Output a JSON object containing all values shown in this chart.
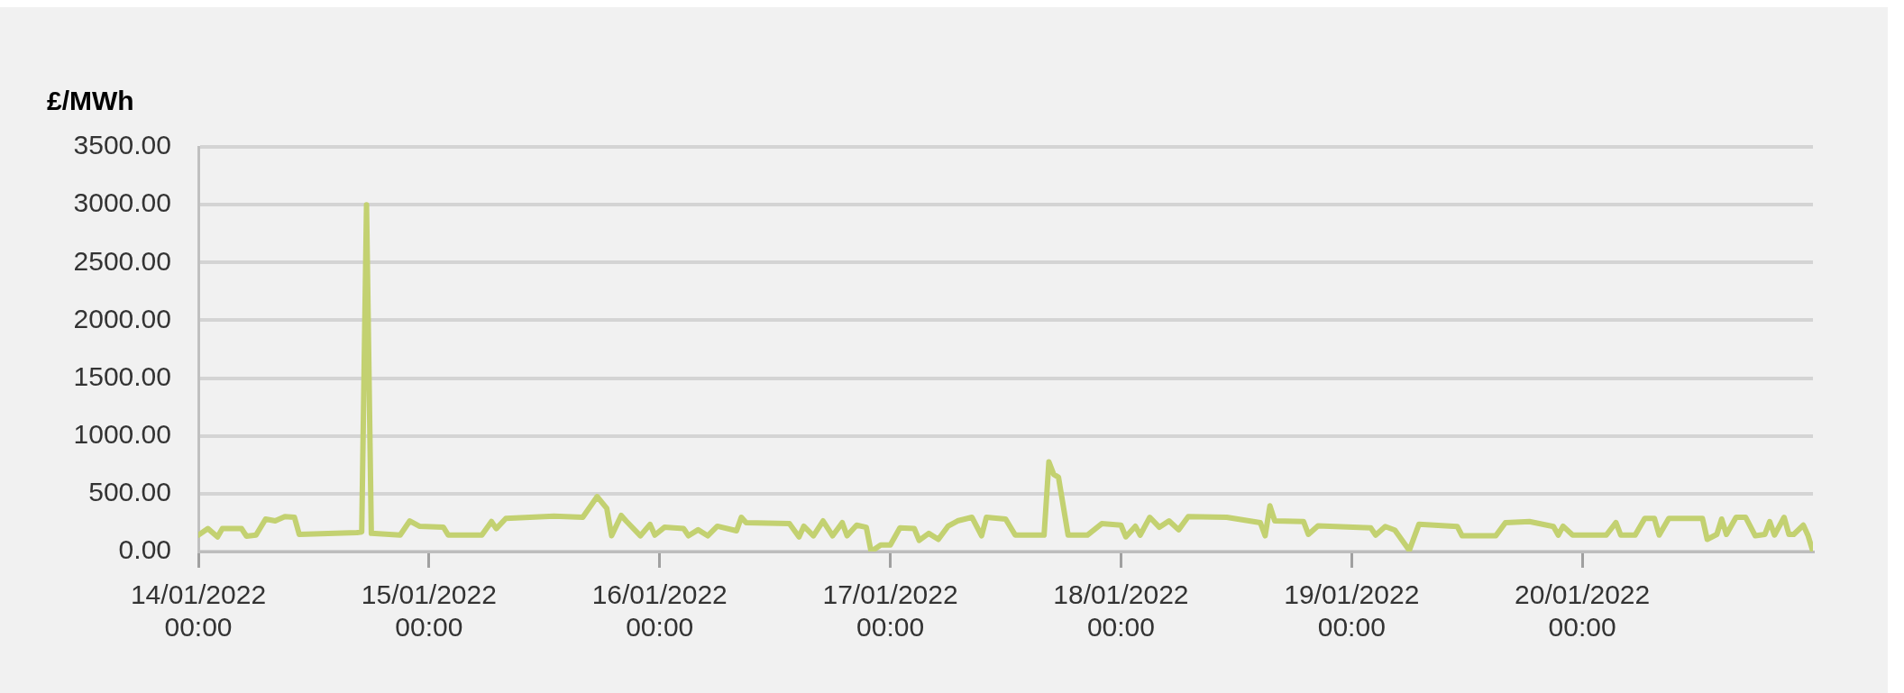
{
  "chart_data": {
    "type": "line",
    "ylabel": "£/MWh",
    "x": [
      "2022-01-14T00:00",
      "2022-01-14T01:00",
      "2022-01-14T02:00",
      "2022-01-14T02:30",
      "2022-01-14T04:30",
      "2022-01-14T05:00",
      "2022-01-14T06:00",
      "2022-01-14T07:00",
      "2022-01-14T08:00",
      "2022-01-14T09:00",
      "2022-01-14T10:00",
      "2022-01-14T10:30",
      "2022-01-14T16:30",
      "2022-01-14T17:00",
      "2022-01-14T17:30",
      "2022-01-14T18:00",
      "2022-01-14T21:00",
      "2022-01-14T22:00",
      "2022-01-14T23:00",
      "2022-01-15T01:30",
      "2022-01-15T02:00",
      "2022-01-15T05:30",
      "2022-01-15T06:30",
      "2022-01-15T07:00",
      "2022-01-15T08:00",
      "2022-01-15T13:00",
      "2022-01-15T16:00",
      "2022-01-15T17:30",
      "2022-01-15T18:30",
      "2022-01-15T19:00",
      "2022-01-15T20:00",
      "2022-01-15T20:30",
      "2022-01-15T22:00",
      "2022-01-15T23:00",
      "2022-01-15T23:30",
      "2022-01-16T00:30",
      "2022-01-16T02:30",
      "2022-01-16T03:00",
      "2022-01-16T04:00",
      "2022-01-16T05:00",
      "2022-01-16T06:00",
      "2022-01-16T08:00",
      "2022-01-16T08:30",
      "2022-01-16T09:00",
      "2022-01-16T13:30",
      "2022-01-16T14:30",
      "2022-01-16T15:00",
      "2022-01-16T16:00",
      "2022-01-16T17:00",
      "2022-01-16T18:00",
      "2022-01-16T19:00",
      "2022-01-16T19:30",
      "2022-01-16T20:30",
      "2022-01-16T21:30",
      "2022-01-16T22:00",
      "2022-01-16T23:00",
      "2022-01-17T00:00",
      "2022-01-17T01:00",
      "2022-01-17T02:30",
      "2022-01-17T03:00",
      "2022-01-17T04:00",
      "2022-01-17T05:00",
      "2022-01-17T06:00",
      "2022-01-17T07:00",
      "2022-01-17T08:30",
      "2022-01-17T09:30",
      "2022-01-17T10:00",
      "2022-01-17T12:00",
      "2022-01-17T13:00",
      "2022-01-17T16:00",
      "2022-01-17T16:30",
      "2022-01-17T17:00",
      "2022-01-17T17:30",
      "2022-01-17T18:30",
      "2022-01-17T20:30",
      "2022-01-17T22:00",
      "2022-01-18T00:00",
      "2022-01-18T00:30",
      "2022-01-18T01:30",
      "2022-01-18T02:00",
      "2022-01-18T03:00",
      "2022-01-18T04:00",
      "2022-01-18T05:00",
      "2022-01-18T06:00",
      "2022-01-18T07:00",
      "2022-01-18T11:00",
      "2022-01-18T14:30",
      "2022-01-18T15:00",
      "2022-01-18T15:30",
      "2022-01-18T16:00",
      "2022-01-18T19:00",
      "2022-01-18T19:30",
      "2022-01-18T20:30",
      "2022-01-19T02:00",
      "2022-01-19T02:30",
      "2022-01-19T03:30",
      "2022-01-19T04:30",
      "2022-01-19T06:00",
      "2022-01-19T07:00",
      "2022-01-19T11:00",
      "2022-01-19T11:30",
      "2022-01-19T15:00",
      "2022-01-19T16:00",
      "2022-01-19T18:30",
      "2022-01-19T21:00",
      "2022-01-19T21:30",
      "2022-01-19T22:00",
      "2022-01-19T23:00",
      "2022-01-20T02:30",
      "2022-01-20T03:30",
      "2022-01-20T04:00",
      "2022-01-20T05:30",
      "2022-01-20T06:30",
      "2022-01-20T07:30",
      "2022-01-20T08:00",
      "2022-01-20T09:00",
      "2022-01-20T12:30",
      "2022-01-20T13:00",
      "2022-01-20T14:00",
      "2022-01-20T14:30",
      "2022-01-20T15:00",
      "2022-01-20T16:00",
      "2022-01-20T17:00",
      "2022-01-20T18:00",
      "2022-01-20T19:00",
      "2022-01-20T19:30",
      "2022-01-20T20:00",
      "2022-01-20T21:00",
      "2022-01-20T21:30",
      "2022-01-20T22:00",
      "2022-01-20T23:00",
      "2022-01-20T23:30",
      "2022-01-21T00:00"
    ],
    "series": [
      {
        "color": "#c3d171",
        "values": [
          142,
          198,
          127,
          198,
          198,
          133,
          142,
          281,
          265,
          302,
          296,
          148,
          164,
          170,
          3000,
          157,
          142,
          265,
          219,
          210,
          142,
          142,
          259,
          198,
          287,
          306,
          296,
          475,
          373,
          136,
          312,
          265,
          136,
          235,
          142,
          210,
          198,
          136,
          188,
          136,
          219,
          179,
          296,
          250,
          241,
          127,
          219,
          136,
          265,
          136,
          250,
          136,
          228,
          210,
          0,
          56,
          56,
          204,
          198,
          96,
          157,
          105,
          219,
          265,
          296,
          136,
          296,
          281,
          142,
          142,
          775,
          667,
          642,
          142,
          142,
          241,
          228,
          127,
          219,
          142,
          296,
          210,
          265,
          188,
          302,
          296,
          250,
          136,
          395,
          265,
          259,
          148,
          222,
          204,
          142,
          216,
          185,
          10,
          235,
          216,
          136,
          136,
          250,
          259,
          216,
          142,
          219,
          142,
          142,
          250,
          142,
          142,
          287,
          287,
          142,
          287,
          287,
          105,
          148,
          281,
          148,
          296,
          296,
          136,
          148,
          259,
          142,
          296,
          148,
          148,
          228,
          136,
          0
        ]
      }
    ],
    "xlim": [
      "2022-01-14T00:00",
      "2022-01-21T00:00"
    ],
    "xticks": [
      {
        "value": "2022-01-14T00:00",
        "label": "14/01/2022 00:00"
      },
      {
        "value": "2022-01-15T00:00",
        "label": "15/01/2022 00:00"
      },
      {
        "value": "2022-01-16T00:00",
        "label": "16/01/2022 00:00"
      },
      {
        "value": "2022-01-17T00:00",
        "label": "17/01/2022 00:00"
      },
      {
        "value": "2022-01-18T00:00",
        "label": "18/01/2022 00:00"
      },
      {
        "value": "2022-01-19T00:00",
        "label": "19/01/2022 00:00"
      },
      {
        "value": "2022-01-20T00:00",
        "label": "20/01/2022 00:00"
      }
    ],
    "ylim": [
      0,
      3500
    ],
    "yticks": [
      {
        "value": 0,
        "label": "0.00"
      },
      {
        "value": 500,
        "label": "500.00"
      },
      {
        "value": 1000,
        "label": "1000.00"
      },
      {
        "value": 1500,
        "label": "1500.00"
      },
      {
        "value": 2000,
        "label": "2000.00"
      },
      {
        "value": 2500,
        "label": "2500.00"
      },
      {
        "value": 3000,
        "label": "3000.00"
      },
      {
        "value": 3500,
        "label": "3500.00"
      }
    ],
    "grid": "y",
    "legend": false,
    "marker": "none",
    "line_style": "solid"
  }
}
